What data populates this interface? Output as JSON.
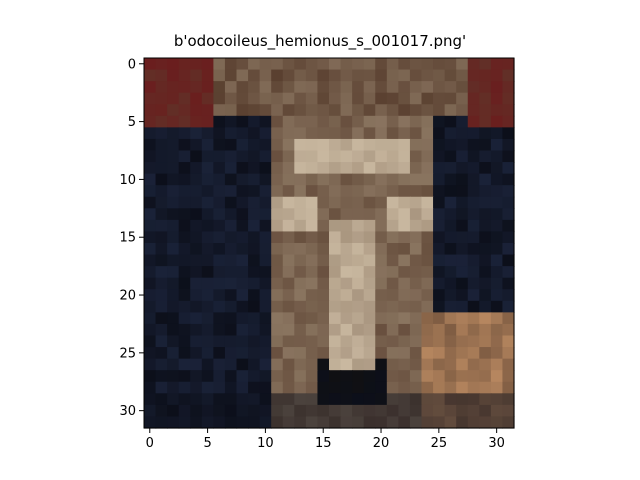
{
  "figure": {
    "title": "b'odocoileus_hemionus_s_001017.png'",
    "image_grid": [
      32,
      32
    ],
    "x_ticks": [
      "0",
      "5",
      "10",
      "15",
      "20",
      "25",
      "30"
    ],
    "y_ticks": [
      "0",
      "5",
      "10",
      "15",
      "20",
      "25",
      "30"
    ],
    "palette": {
      "bg_dark": "#0c0f1a",
      "navy": "#1a2238",
      "red": "#6a1e1e",
      "tan": "#8a7560",
      "light_tan": "#c9b8a0",
      "brown": "#5a4030",
      "copper": "#b88860",
      "black": "#111111"
    }
  }
}
